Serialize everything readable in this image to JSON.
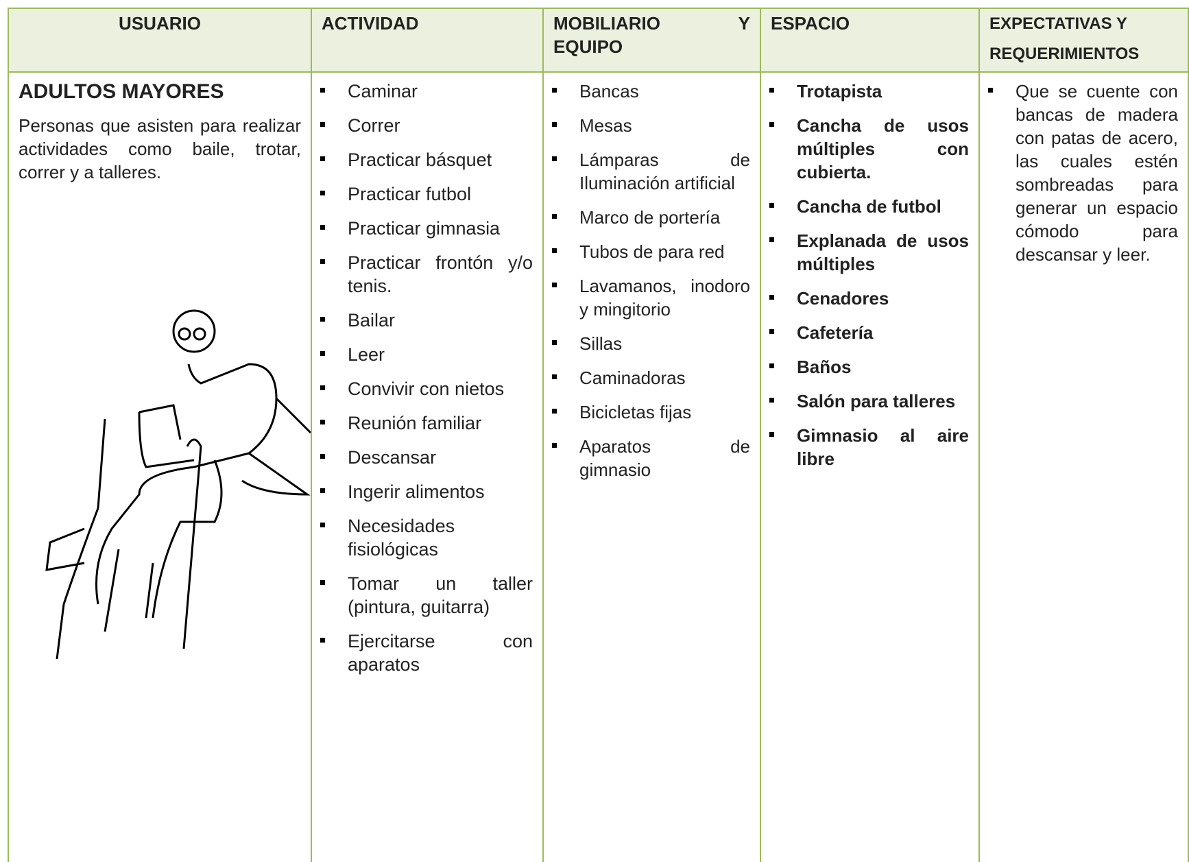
{
  "table": {
    "header": [
      "USUARIO",
      "ACTIVIDAD",
      "MOBILIARIO Y EQUIPO",
      "ESPACIO",
      "EXPECTATIVAS Y REQUERIMIENTOS"
    ],
    "user": {
      "title": "ADULTOS MAYORES",
      "description": "Personas que asisten para realizar actividades como baile, trotar, correr y a talleres."
    },
    "activities": [
      "Caminar",
      "Correr",
      "Practicar básquet",
      "Practicar futbol",
      "Practicar gimnasia",
      "Practicar frontón y/o tenis.",
      "Bailar",
      "Leer",
      "Convivir con nietos",
      "Reunión familiar",
      "Descansar",
      "Ingerir alimentos",
      "Necesidades fisiológicas",
      "Tomar un taller (pintura, guitarra)",
      "Ejercitarse con aparatos"
    ],
    "furniture": [
      "Bancas",
      "Mesas",
      "Lámparas de Iluminación artificial",
      "Marco de portería",
      "Tubos de para red",
      "Lavamanos, inodoro y mingitorio",
      "Sillas",
      "Caminadoras",
      "Bicicletas fijas",
      "Aparatos de gimnasio"
    ],
    "spaces": [
      "Trotapista",
      "Cancha de usos múltiples con cubierta.",
      "Cancha de futbol",
      "Explanada de usos múltiples",
      "Cenadores",
      "Cafetería",
      "Baños",
      "Salón para talleres",
      "Gimnasio al aire libre"
    ],
    "expectations": [
      "Que se cuente con bancas de madera con patas de acero, las cuales estén sombreadas para generar un espacio cómodo para descansar y leer."
    ]
  }
}
